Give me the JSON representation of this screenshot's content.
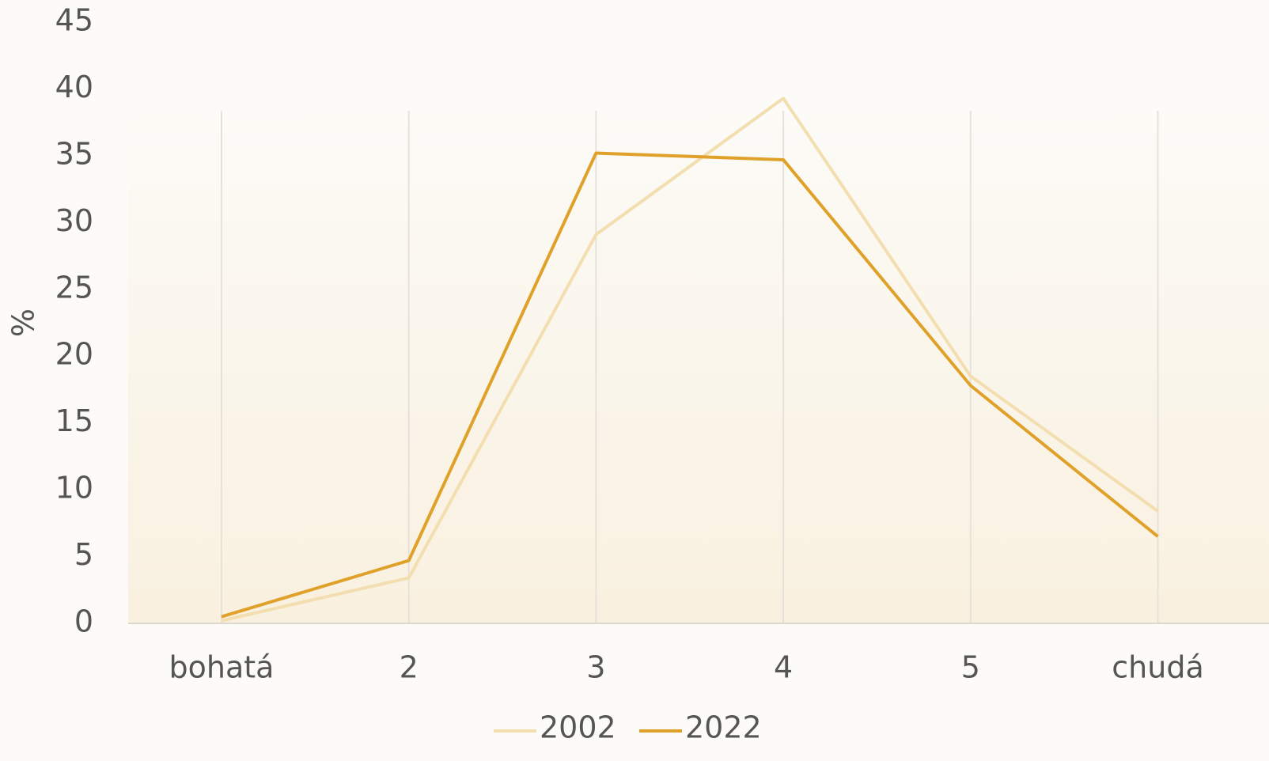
{
  "chart_data": {
    "type": "line",
    "y_label": "%",
    "categories": [
      "bohatá",
      "2",
      "3",
      "4",
      "5",
      "chudá"
    ],
    "series": [
      {
        "name": "2002",
        "color": "#f3deb0",
        "values": [
          0.2,
          3.4,
          29.1,
          39.3,
          18.5,
          8.4
        ]
      },
      {
        "name": "2022",
        "color": "#e0a12a",
        "values": [
          0.5,
          4.7,
          35.2,
          34.7,
          17.8,
          6.5
        ]
      }
    ],
    "ylim": [
      0,
      45
    ],
    "yticks": [
      0,
      5,
      10,
      15,
      20,
      25,
      30,
      35,
      40,
      45
    ],
    "grid": true,
    "legend": "bottom"
  }
}
